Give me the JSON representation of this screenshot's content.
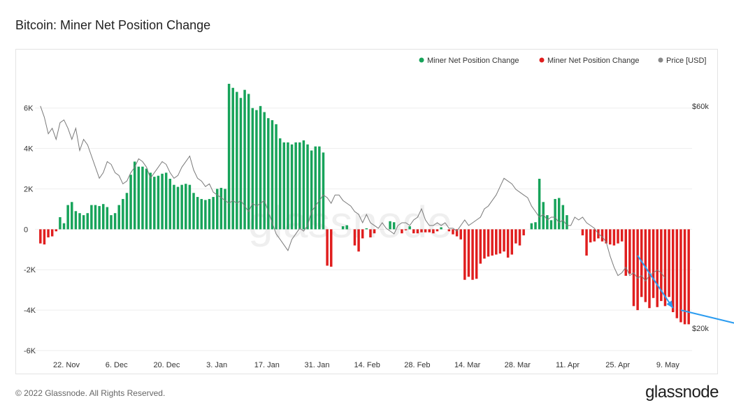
{
  "title": "Bitcoin: Miner Net Position Change",
  "footer": "© 2022 Glassnode. All Rights Reserved.",
  "brand": "glassnode",
  "watermark": "glassnode",
  "colors": {
    "positive": "#17a35a",
    "negative": "#e01e1e",
    "price": "#888888",
    "arrow": "#2b9cf0",
    "grid": "#eeeeee"
  },
  "chart_data": {
    "type": "bar",
    "title": "Bitcoin: Miner Net Position Change",
    "y_left_ticks": [
      "6K",
      "4K",
      "2K",
      "0",
      "-2K",
      "-4K",
      "-6K"
    ],
    "y_left_values": [
      6000,
      4000,
      2000,
      0,
      -2000,
      -4000,
      -6000
    ],
    "y_right_ticks": [
      "$60k",
      "$20k"
    ],
    "y_right_values": [
      60000,
      20000
    ],
    "ylim": [
      -6000,
      7200
    ],
    "price_range": [
      16000,
      64000
    ],
    "x_ticks": [
      "22. Nov",
      "6. Dec",
      "20. Dec",
      "3. Jan",
      "17. Jan",
      "31. Jan",
      "14. Feb",
      "28. Feb",
      "14. Mar",
      "28. Mar",
      "11. Apr",
      "25. Apr",
      "9. May"
    ],
    "legend": [
      {
        "label": "Miner Net Position Change",
        "color": "#17a35a"
      },
      {
        "label": "Miner Net Position Change",
        "color": "#e01e1e"
      },
      {
        "label": "Price [USD]",
        "color": "#888888"
      }
    ],
    "grid": true,
    "legend_position": "top-right",
    "series": [
      {
        "name": "Miner Net Position Change",
        "values": [
          -700,
          -750,
          -400,
          -350,
          -100,
          600,
          300,
          1200,
          1350,
          900,
          800,
          700,
          800,
          1200,
          1200,
          1150,
          1250,
          1100,
          700,
          800,
          1200,
          1500,
          1800,
          2700,
          3350,
          3100,
          3100,
          3000,
          2800,
          2600,
          2650,
          2750,
          2800,
          2500,
          2200,
          2100,
          2200,
          2250,
          2200,
          1800,
          1600,
          1500,
          1450,
          1500,
          1600,
          2000,
          2050,
          2000,
          7200,
          7000,
          6800,
          6500,
          6900,
          6700,
          6000,
          5900,
          6100,
          5800,
          5500,
          5400,
          5200,
          4500,
          4300,
          4300,
          4200,
          4300,
          4300,
          4400,
          4200,
          3900,
          4100,
          4100,
          3800,
          -1800,
          -1850,
          0,
          0,
          150,
          200,
          0,
          -800,
          -1100,
          -450,
          50,
          -400,
          -200,
          0,
          0,
          0,
          400,
          350,
          0,
          -200,
          -50,
          150,
          -200,
          -200,
          -150,
          -150,
          -150,
          -200,
          -100,
          100,
          0,
          -100,
          -250,
          -350,
          -500,
          -2500,
          -2350,
          -2500,
          -2450,
          -1700,
          -1450,
          -1350,
          -1300,
          -1250,
          -1200,
          -1100,
          -1400,
          -1250,
          -700,
          -800,
          -300,
          0,
          300,
          350,
          2500,
          1350,
          700,
          450,
          1500,
          1550,
          1200,
          700,
          0,
          0,
          0,
          -300,
          -1300,
          -650,
          -600,
          -450,
          -600,
          -700,
          -750,
          -800,
          -700,
          -600,
          -2300,
          -2200,
          -3800,
          -4000,
          -3350,
          -3600,
          -3900,
          -3400,
          -3850,
          -3550,
          -3800,
          -3350,
          -4100,
          -4400,
          -4600,
          -4700,
          -4700
        ]
      },
      {
        "name": "Price [USD]",
        "values": [
          60000,
          58000,
          55000,
          56000,
          54000,
          57000,
          57500,
          56000,
          54000,
          56000,
          52000,
          54000,
          53000,
          51000,
          49000,
          47000,
          48000,
          50000,
          49500,
          48000,
          47500,
          46000,
          46500,
          48000,
          49000,
          50500,
          50000,
          49000,
          47000,
          48000,
          49000,
          50000,
          49500,
          48000,
          47000,
          47500,
          49000,
          50000,
          51000,
          48500,
          47000,
          46500,
          45500,
          46000,
          44500,
          44000,
          43500,
          43000,
          42500,
          43000,
          42500,
          43000,
          42000,
          41000,
          42500,
          42000,
          42500,
          43000,
          41000,
          39000,
          37000,
          36000,
          35000,
          34000,
          36000,
          37000,
          38000,
          37500,
          38500,
          41000,
          42000,
          43000,
          44000,
          43500,
          42500,
          44000,
          44000,
          43000,
          42500,
          42000,
          41000,
          40500,
          39000,
          40500,
          39000,
          38500,
          38000,
          39000,
          38000,
          37500,
          37000,
          38500,
          39000,
          39000,
          38500,
          39500,
          40000,
          41500,
          39500,
          38500,
          38500,
          39000,
          38500,
          39000,
          38000,
          38000,
          37500,
          38500,
          39500,
          38500,
          39000,
          39500,
          40000,
          41500,
          42000,
          43000,
          44000,
          45500,
          47000,
          46500,
          46000,
          45000,
          44500,
          44000,
          43500,
          42000,
          41000,
          40000,
          40500,
          39500,
          40000,
          40000,
          39000,
          39500,
          38500,
          38500,
          40000,
          39500,
          40000,
          39000,
          38500,
          38000,
          37000,
          36500,
          35500,
          33000,
          31000,
          29500,
          30000,
          31000,
          29500,
          30000,
          29000,
          29500,
          28500,
          29500,
          30000,
          30500,
          30000,
          29000
        ]
      }
    ],
    "annotations": [
      {
        "type": "arrow",
        "from_index": 152,
        "from_value": -1300,
        "to_index": 161,
        "to_value": -3900
      },
      {
        "type": "arrow",
        "from_index": 163,
        "from_value": -4000,
        "to_index": 180,
        "to_value": -4800
      }
    ]
  }
}
